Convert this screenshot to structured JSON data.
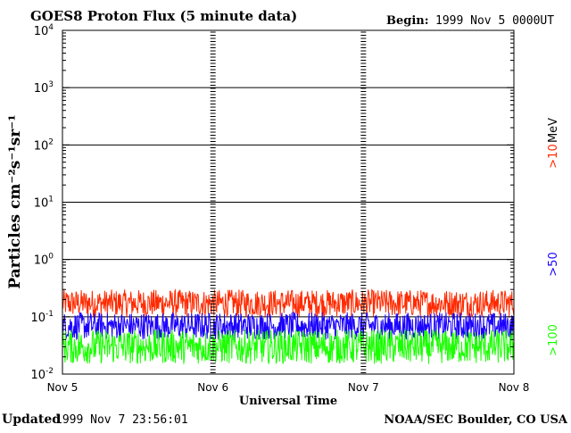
{
  "chart_data": {
    "type": "line",
    "title": "GOES8 Proton Flux (5 minute data)",
    "begin_label": "Begin:",
    "begin_value": "1999 Nov 5 0000UT",
    "xlabel": "Universal Time",
    "ylabel": "Particles cm⁻²s⁻¹sr⁻¹",
    "y_scale": "log",
    "ylim": [
      0.01,
      10000
    ],
    "xlim_days": [
      0,
      3
    ],
    "grid": true,
    "x_tick_labels": [
      "Nov 5",
      "Nov 6",
      "Nov 7",
      "Nov 8"
    ],
    "y_tick_labels": [
      {
        "base": "10",
        "exp": "4"
      },
      {
        "base": "10",
        "exp": "3"
      },
      {
        "base": "10",
        "exp": "2"
      },
      {
        "base": "10",
        "exp": "1"
      },
      {
        "base": "10",
        "exp": "0"
      },
      {
        "base": "10",
        "exp": "-1"
      },
      {
        "base": "10",
        "exp": "-2"
      }
    ],
    "series": [
      {
        "name": ">10",
        "color": "#ff2a00",
        "typical_range": [
          0.1,
          0.3
        ]
      },
      {
        "name": ">50",
        "color": "#1a00ff",
        "typical_range": [
          0.04,
          0.12
        ]
      },
      {
        "name": ">100",
        "color": "#1aff00",
        "typical_range": [
          0.015,
          0.06
        ]
      }
    ],
    "legend_unit": "MeV",
    "legend_placement": "right"
  },
  "footer": {
    "updated_label": "Updated",
    "updated_value": "1999 Nov  7 23:56:01",
    "source": "NOAA/SEC Boulder, CO USA"
  }
}
